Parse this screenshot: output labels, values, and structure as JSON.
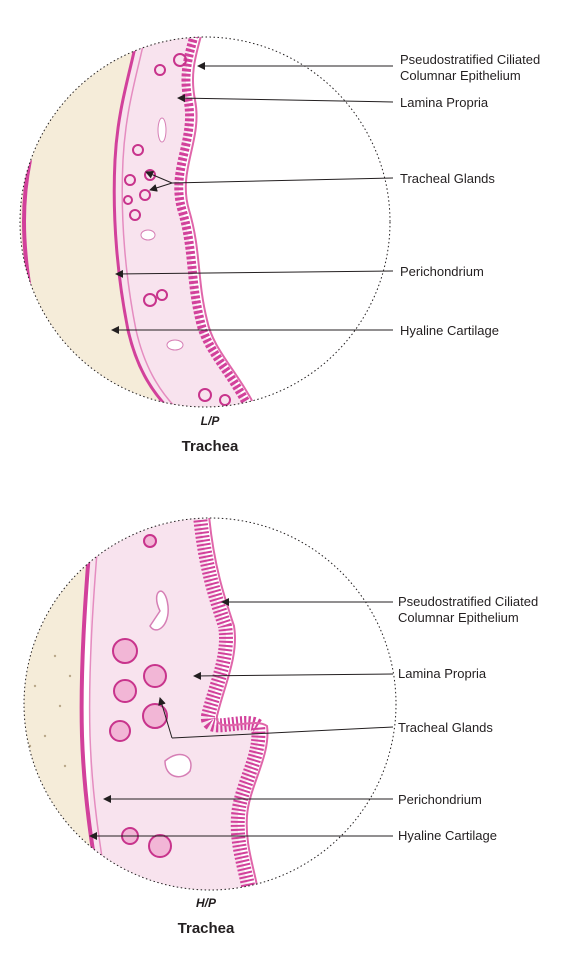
{
  "colors": {
    "stain_pink": "#d2419b",
    "stain_light": "#f4c9e0",
    "cartilage": "#f5ecd9",
    "lamina": "#f8e3ee",
    "lumen": "#ffffff",
    "text": "#231f20"
  },
  "figures": [
    {
      "id": "lp",
      "magnification": "L/P",
      "title": "Trachea",
      "labels": {
        "epithelium_line1": "Pseudostratified Ciliated",
        "epithelium_line2": "Columnar Epithelium",
        "lamina_propria": "Lamina Propria",
        "tracheal_glands": "Tracheal Glands",
        "perichondrium": "Perichondrium",
        "hyaline_cartilage": "Hyaline Cartilage"
      }
    },
    {
      "id": "hp",
      "magnification": "H/P",
      "title": "Trachea",
      "labels": {
        "epithelium_line1": "Pseudostratified Ciliated",
        "epithelium_line2": "Columnar Epithelium",
        "lamina_propria": "Lamina Propria",
        "tracheal_glands": "Tracheal Glands",
        "perichondrium": "Perichondrium",
        "hyaline_cartilage": "Hyaline Cartilage"
      }
    }
  ]
}
